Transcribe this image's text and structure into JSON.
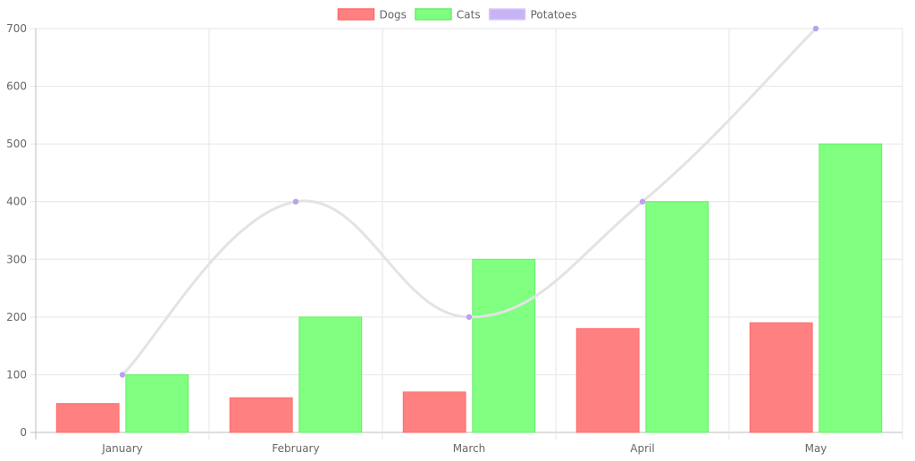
{
  "chart_data": {
    "type": "bar",
    "categories": [
      "January",
      "February",
      "March",
      "April",
      "May"
    ],
    "series": [
      {
        "name": "Dogs",
        "type": "bar",
        "values": [
          50,
          60,
          70,
          180,
          190
        ],
        "fill": "#ff8080",
        "stroke": "#ff6b6b"
      },
      {
        "name": "Cats",
        "type": "bar",
        "values": [
          100,
          200,
          300,
          400,
          500
        ],
        "fill": "#80ff80",
        "stroke": "#66ee66"
      },
      {
        "name": "Potatoes",
        "type": "line",
        "values": [
          100,
          400,
          200,
          400,
          700
        ],
        "fill": "#c8b4f4",
        "stroke": "#e3e3e3",
        "point_color": "#bba0ee"
      }
    ],
    "y_ticks": [
      0,
      100,
      200,
      300,
      400,
      500,
      600,
      700
    ],
    "ylim": [
      0,
      700
    ],
    "grid": true,
    "legend_position": "top-center",
    "title": "",
    "xlabel": "",
    "ylabel": ""
  }
}
